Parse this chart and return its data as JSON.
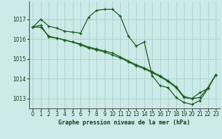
{
  "title": "Graphe pression niveau de la mer (hPa)",
  "background_color": "#cceae8",
  "grid_color": "#aad4d0",
  "line_color": "#1a5c1a",
  "xlim": [
    -0.5,
    23.5
  ],
  "ylim": [
    1012.5,
    1017.9
  ],
  "yticks": [
    1013,
    1014,
    1015,
    1016,
    1017
  ],
  "xticks": [
    0,
    1,
    2,
    3,
    4,
    5,
    6,
    7,
    8,
    9,
    10,
    11,
    12,
    13,
    14,
    15,
    16,
    17,
    18,
    19,
    20,
    21,
    22,
    23
  ],
  "series1_x": [
    0,
    1,
    2,
    3,
    4,
    5,
    6,
    7,
    8,
    9,
    10,
    11,
    12,
    13,
    14,
    15,
    16,
    17,
    18,
    19,
    20,
    21,
    22,
    23
  ],
  "series1_y": [
    1016.6,
    1017.0,
    1016.65,
    1016.55,
    1016.4,
    1016.35,
    1016.3,
    1017.1,
    1017.45,
    1017.5,
    1017.5,
    1017.15,
    1016.15,
    1015.65,
    1015.85,
    1014.15,
    1013.65,
    1013.55,
    1013.05,
    1012.8,
    1012.7,
    1012.9,
    1013.5,
    1014.2
  ],
  "series2_x": [
    0,
    1,
    2,
    3,
    4,
    5,
    6,
    7,
    8,
    9,
    10,
    11,
    12,
    13,
    14,
    15,
    16,
    17,
    18,
    19,
    20,
    21,
    22,
    23
  ],
  "series2_y": [
    1016.6,
    1016.6,
    1016.15,
    1016.05,
    1015.95,
    1015.85,
    1015.7,
    1015.55,
    1015.45,
    1015.35,
    1015.2,
    1015.05,
    1014.85,
    1014.65,
    1014.5,
    1014.3,
    1014.1,
    1013.85,
    1013.55,
    1013.05,
    1013.0,
    1013.05,
    1013.55,
    1014.2
  ],
  "series3_x": [
    0,
    1,
    2,
    3,
    4,
    5,
    6,
    7,
    8,
    9,
    10,
    11,
    12,
    13,
    14,
    15,
    16,
    17,
    18,
    19,
    20,
    21,
    22,
    23
  ],
  "series3_y": [
    1016.6,
    1016.7,
    1016.1,
    1016.05,
    1015.95,
    1015.85,
    1015.75,
    1015.6,
    1015.5,
    1015.4,
    1015.3,
    1015.1,
    1014.9,
    1014.7,
    1014.55,
    1014.35,
    1014.15,
    1013.9,
    1013.6,
    1013.1,
    1013.0,
    1013.3,
    1013.5,
    1014.2
  ]
}
